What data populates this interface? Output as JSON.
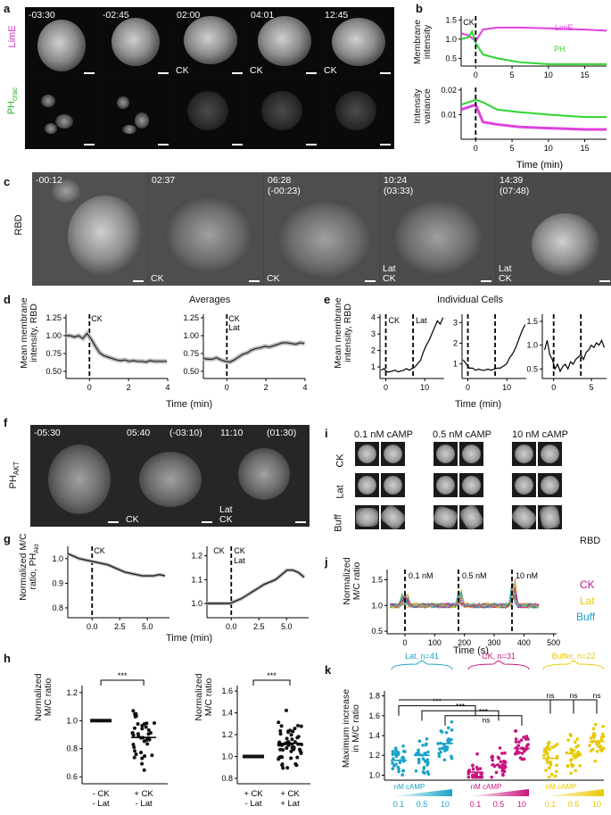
{
  "panels": {
    "a": "a",
    "b": "b",
    "c": "c",
    "d": "d",
    "e": "e",
    "f": "f",
    "g": "g",
    "h": "h",
    "i": "i",
    "j": "j",
    "k": "k"
  },
  "a": {
    "times": [
      "-03:30",
      "-02:45",
      "02:00",
      "04:01",
      "12:45"
    ],
    "ck": [
      "",
      "",
      "CK",
      "CK",
      "CK"
    ],
    "row1": "LimE",
    "row2_main": "PH",
    "row2_sub": "crac"
  },
  "b": {
    "top_ylabel": [
      "Membrane",
      "intensity"
    ],
    "bottom_ylabel": [
      "Intensity",
      "variance"
    ],
    "xlabel": "Time (min)",
    "ck": "CK",
    "lime": "LimE",
    "phcrac_main": "PH",
    "phcrac_sub": "crac",
    "top_yticks": [
      "1.5",
      "1.0",
      "0.5"
    ],
    "bottom_yticks": [
      "0.02",
      "0.01"
    ],
    "xticks": [
      "0",
      "5",
      "10",
      "15"
    ],
    "colors": {
      "lime": "#e040e0",
      "phcrac": "#2ed52e"
    }
  },
  "c": {
    "label": "RBD",
    "times": [
      "-00:12",
      "02:37",
      "06:28\n(-00:23)",
      "10:24\n(03:33)",
      "14:39\n(07:48)"
    ],
    "bottom": [
      "",
      "CK",
      "CK",
      "Lat\nCK",
      "Lat\nCK"
    ]
  },
  "d": {
    "title": "Averages",
    "ylabel": [
      "Mean membrane",
      "intensity, RBD"
    ],
    "xlabel": "Time (min)",
    "yticks": [
      "1.25",
      "1.00",
      "0.75",
      "0.50"
    ],
    "xticks": [
      "0",
      "2",
      "4"
    ],
    "ck": "CK",
    "lat": "Lat"
  },
  "e": {
    "title": "Individual Cells",
    "ylabel": [
      "Mean membrane",
      "intensity, RBD"
    ],
    "xlabel": "Time (min)",
    "p1_yticks": [
      "4",
      "3",
      "2",
      "1"
    ],
    "p1_xticks": [
      "0",
      "10"
    ],
    "p2_yticks": [
      "3",
      "2",
      "1"
    ],
    "p2_xticks": [
      "0",
      "10"
    ],
    "p3_yticks": [
      "1.5",
      "1.0",
      "0.5"
    ],
    "p3_xticks": [
      "0",
      "5"
    ],
    "ck": "CK",
    "lat": "Lat"
  },
  "f": {
    "label_main": "PH",
    "label_sub": "AKT",
    "times": [
      "-05:30",
      "05:40",
      "11:10"
    ],
    "times2": [
      "",
      "(-03:10)",
      "(01:30)"
    ],
    "bottom": [
      "",
      "CK",
      "Lat\nCK"
    ]
  },
  "g": {
    "ylabel": [
      "Normalized M/C",
      "ratio, PH"
    ],
    "ylabel_sub": "Akt",
    "xlabel": "Time (min)",
    "p1_yticks": [
      "1.0",
      "0.9",
      "0.8"
    ],
    "p2_yticks": [
      "1.2",
      "1.1",
      "1.0"
    ],
    "xticks": [
      "0.0",
      "2.5",
      "5.0"
    ],
    "ck": "CK",
    "lat": "Lat"
  },
  "h": {
    "ylabel": [
      "Normalized",
      "M/C ratio"
    ],
    "p1_yticks": [
      "1.2",
      "1.0",
      "0.8",
      "0.6"
    ],
    "p2_yticks": [
      "1.6",
      "1.4",
      "1.2",
      "1.0",
      "0.8"
    ],
    "sig": "***",
    "p1_x": [
      "- CK",
      "- Lat",
      "+ CK",
      "- Lat"
    ],
    "p2_x": [
      "+ CK",
      "- Lat",
      "+ CK",
      "+ Lat"
    ]
  },
  "i": {
    "cols": [
      "0.1 nM cAMP",
      "0.5 nM cAMP",
      "10 nM cAMP"
    ],
    "rows": [
      "CK",
      "Lat",
      "Buff"
    ],
    "rbd": "RBD"
  },
  "j": {
    "ylabel": [
      "Normalized",
      "M/C ratio"
    ],
    "xlabel": "Time (s)",
    "yticks": [
      "1.5",
      "1.0",
      "0.5"
    ],
    "xticks": [
      "0",
      "100",
      "200",
      "300",
      "400",
      "500"
    ],
    "marks": [
      "0.1 nM",
      "0.5 nM",
      "10 nM"
    ],
    "legend": [
      "CK",
      "Lat",
      "Buff"
    ],
    "colors": {
      "CK": "#c0168a",
      "Lat": "#e8d020",
      "Buff": "#1fa0c8"
    }
  },
  "k": {
    "ylabel": [
      "Maximum increase",
      "in M/C ratio"
    ],
    "yticks": [
      "1.8",
      "1.6",
      "1.4",
      "1.2",
      "1.0"
    ],
    "groups": [
      {
        "name": "Lat, n=41",
        "color": "#1aa3c8"
      },
      {
        "name": "CK, n=31",
        "color": "#c8147f"
      },
      {
        "name": "Buffer, n=22",
        "color": "#e8c800"
      }
    ],
    "sig": [
      "***",
      "***",
      "***",
      "ns",
      "ns",
      "ns",
      "ns"
    ],
    "camp": "nM cAMP",
    "conc": [
      "0.1",
      "0.5",
      "10"
    ]
  },
  "chart_data": [
    {
      "panel": "b-top",
      "type": "line",
      "title": "",
      "xlabel": "Time (min)",
      "ylabel": "Membrane intensity",
      "xlim": [
        -2,
        18
      ],
      "ylim": [
        0.3,
        1.6
      ],
      "series": [
        {
          "name": "LimE",
          "x": [
            -2,
            -1,
            0,
            1,
            3,
            6,
            10,
            15,
            18
          ],
          "values": [
            1.15,
            1.1,
            0.95,
            1.25,
            1.3,
            1.3,
            1.28,
            1.25,
            1.22
          ]
        },
        {
          "name": "PHcrac",
          "x": [
            -2,
            -1,
            -0.5,
            0,
            1,
            3,
            6,
            10,
            15,
            18
          ],
          "values": [
            1.0,
            1.05,
            1.2,
            0.9,
            0.6,
            0.5,
            0.4,
            0.35,
            0.35,
            0.35
          ]
        }
      ]
    },
    {
      "panel": "b-bottom",
      "type": "line",
      "xlabel": "Time (min)",
      "ylabel": "Intensity variance",
      "xlim": [
        -2,
        18
      ],
      "ylim": [
        0,
        0.02
      ],
      "series": [
        {
          "name": "LimE",
          "x": [
            -2,
            0,
            1,
            3,
            6,
            10,
            15,
            18
          ],
          "values": [
            0.012,
            0.014,
            0.007,
            0.006,
            0.005,
            0.0045,
            0.004,
            0.004
          ]
        },
        {
          "name": "PHcrac",
          "x": [
            -2,
            0,
            1,
            3,
            6,
            10,
            15,
            18
          ],
          "values": [
            0.014,
            0.016,
            0.015,
            0.012,
            0.011,
            0.01,
            0.009,
            0.009
          ]
        }
      ]
    }
  ]
}
